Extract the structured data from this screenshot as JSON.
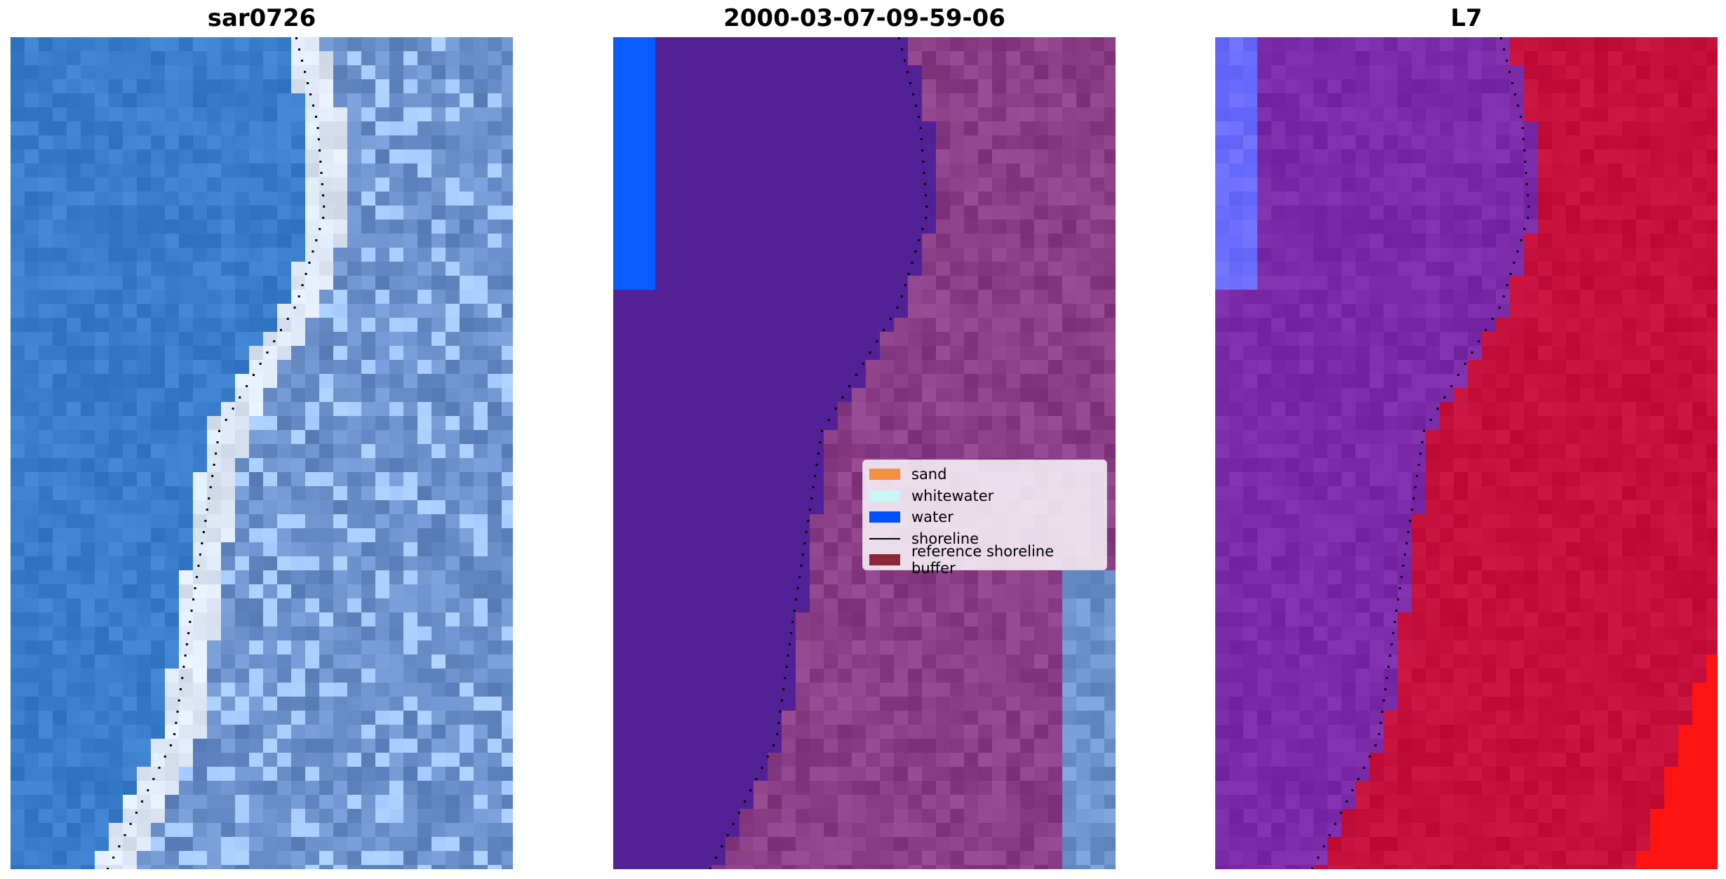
{
  "panels": [
    {
      "title": "sar0726",
      "image": "rgb-composite"
    },
    {
      "title": "2000-03-07-09-59-06",
      "image": "classified-overlay"
    },
    {
      "title": "L7",
      "image": "index-map"
    }
  ],
  "legend": {
    "items": [
      {
        "label": "sand",
        "color": "#f59042"
      },
      {
        "label": "whitewater",
        "color": "#c8f5f5"
      },
      {
        "label": "water",
        "color": "#0050ff"
      },
      {
        "label": "shoreline",
        "color": "#000000",
        "style": "line"
      },
      {
        "label": "reference shoreline buffer",
        "color": "#8b2a36"
      }
    ]
  },
  "colors": {
    "sea_blue": "#3a7ecb",
    "foam": "#dce6f5",
    "land_blue": "#6f93cd",
    "water_class": "#0a5cff",
    "water_overlay": "#532196",
    "land_overlay": "#8a3e86",
    "index_purple": "#7b2aa8",
    "index_red": "#c4103a",
    "index_bright_red": "#ff1414",
    "index_light_blue": "#6a6cff"
  }
}
